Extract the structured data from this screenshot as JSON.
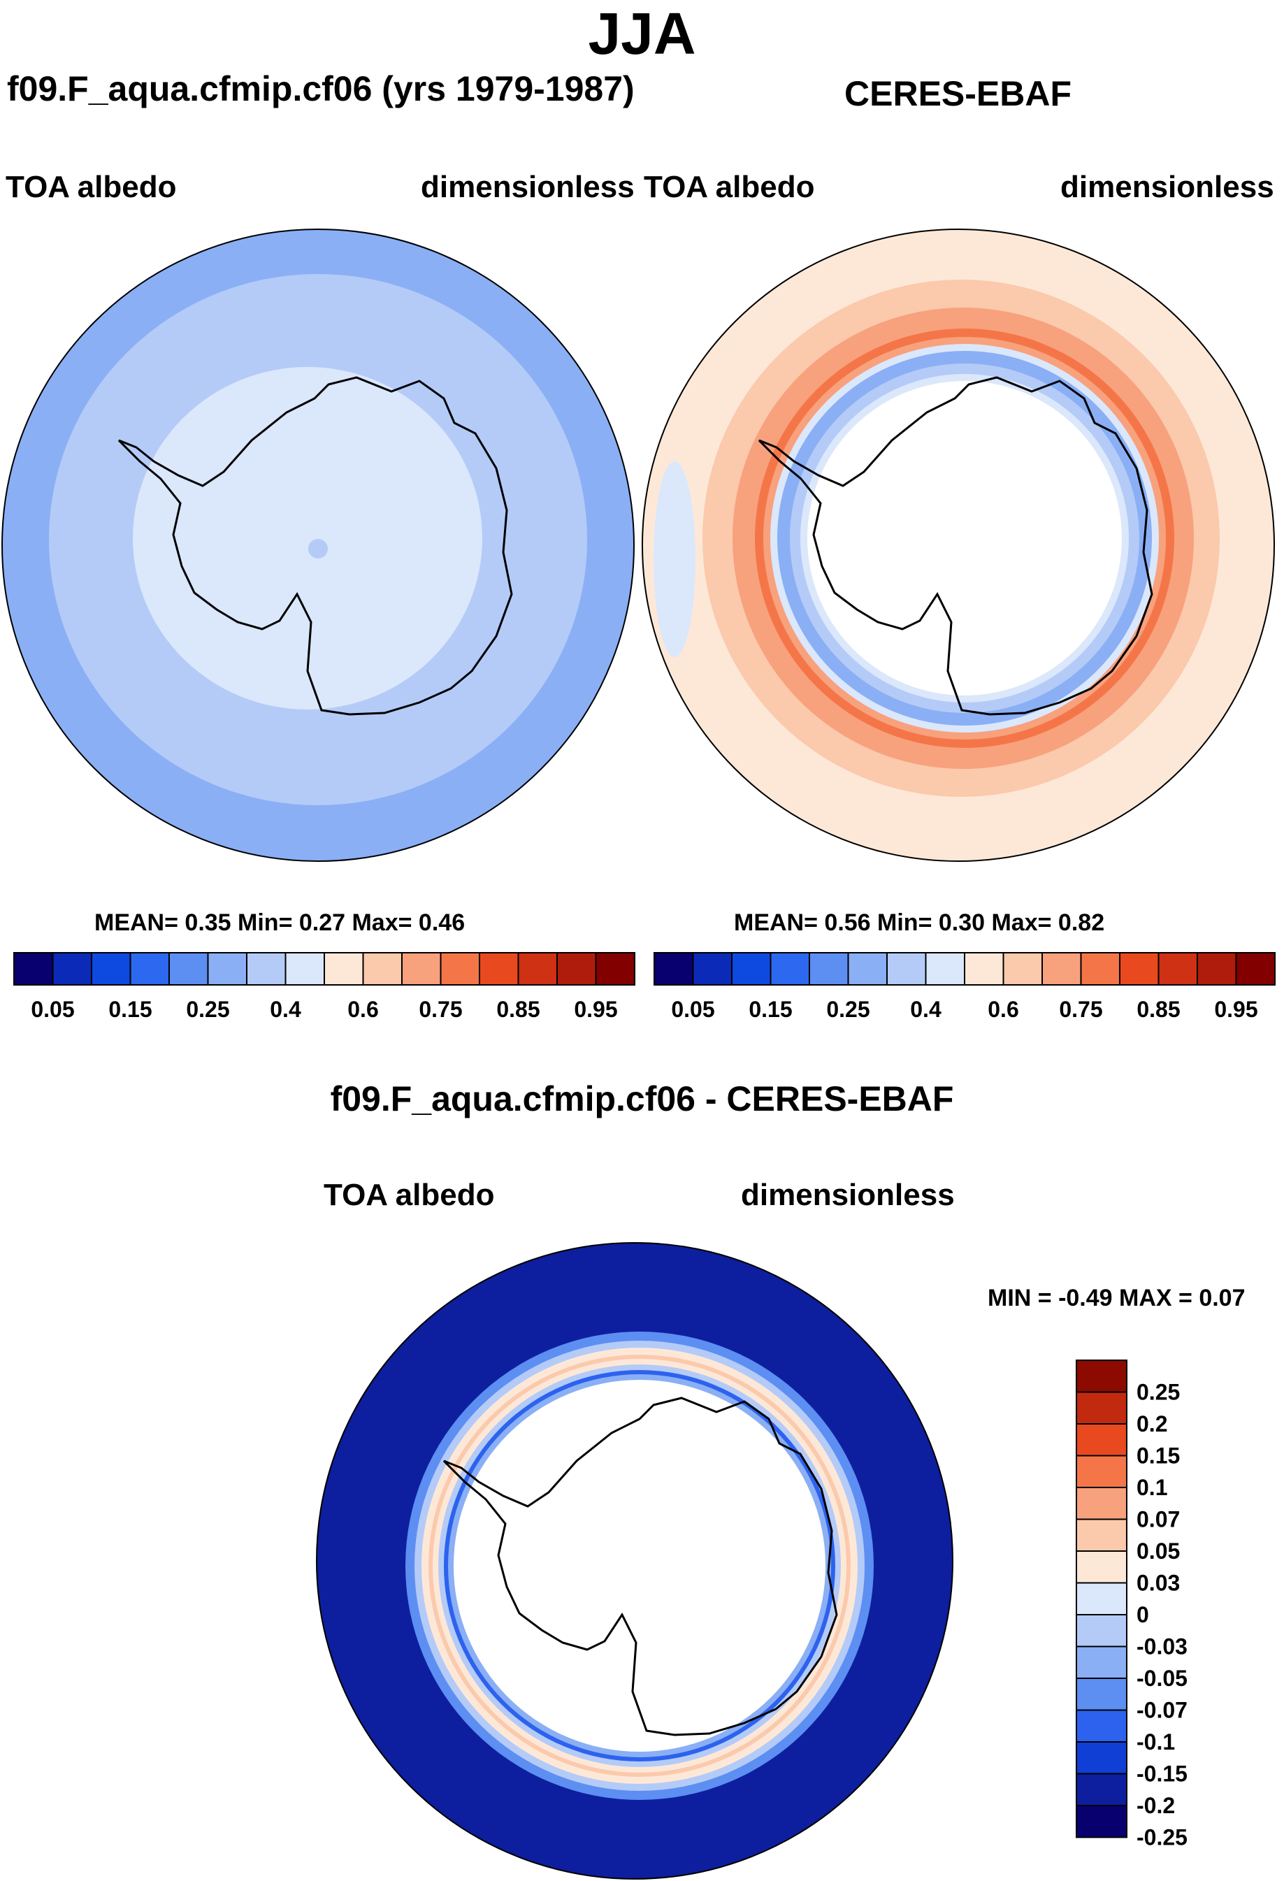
{
  "title": "JJA",
  "colors": {
    "full": [
      "#08006e",
      "#0b2ab8",
      "#0f4ae0",
      "#2c68f0",
      "#5d8ef2",
      "#8aaff5",
      "#b4cbf8",
      "#dbe7fb",
      "#fde8d8",
      "#fbc9ac",
      "#f8a17d",
      "#f47648",
      "#e9491f",
      "#ce3113",
      "#b01c0b",
      "#820000"
    ],
    "diff": [
      "#08006e",
      "#0d1f9e",
      "#0f3fd4",
      "#2c62ee",
      "#5d8ef2",
      "#8aaff5",
      "#b4cbf8",
      "#dbe7fb",
      "#fde8d8",
      "#fbc9ac",
      "#f8a17d",
      "#f47648",
      "#e9491f",
      "#c12a0e",
      "#8c0a00"
    ]
  },
  "panels": [
    {
      "id": "model",
      "title": "f09.F_aqua.cfmip.cf06 (yrs 1979-1987)",
      "left_label": "TOA albedo",
      "right_label": "dimensionless",
      "stats": "MEAN=   0.35  Min=   0.27  Max=   0.46"
    },
    {
      "id": "obs",
      "title": "CERES-EBAF",
      "left_label": "TOA albedo",
      "right_label": "dimensionless",
      "stats": "MEAN=   0.56  Min=   0.30  Max=   0.82"
    },
    {
      "id": "diff",
      "title": "f09.F_aqua.cfmip.cf06 - CERES-EBAF",
      "left_label": "TOA albedo",
      "right_label": "dimensionless",
      "stats": "MIN =  -0.49 MAX =   0.07"
    }
  ],
  "colorbar_horizontal": {
    "labels": [
      "0.05",
      "0.15",
      "0.25",
      "0.4",
      "0.6",
      "0.75",
      "0.85",
      "0.95"
    ]
  },
  "colorbar_vertical": {
    "labels": [
      "0.25",
      "0.2",
      "0.15",
      "0.1",
      "0.07",
      "0.05",
      "0.03",
      "0",
      "-0.03",
      "-0.05",
      "-0.07",
      "-0.1",
      "-0.15",
      "-0.2",
      "-0.25"
    ]
  }
}
